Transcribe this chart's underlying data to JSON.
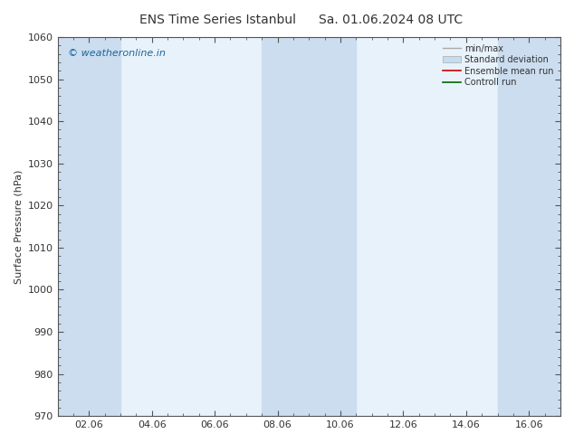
{
  "title": "ENS Time Series Istanbul",
  "title2": "Sa. 01.06.2024 08 UTC",
  "ylabel": "Surface Pressure (hPa)",
  "ylim": [
    970,
    1060
  ],
  "yticks": [
    970,
    980,
    990,
    1000,
    1010,
    1020,
    1030,
    1040,
    1050,
    1060
  ],
  "xtick_labels": [
    "02.06",
    "04.06",
    "06.06",
    "08.06",
    "10.06",
    "12.06",
    "14.06",
    "16.06"
  ],
  "xtick_positions": [
    2,
    4,
    6,
    8,
    10,
    12,
    14,
    16
  ],
  "xlim": [
    1,
    17
  ],
  "shaded_bands": [
    {
      "x_start": 1.0,
      "x_end": 3.0
    },
    {
      "x_start": 7.5,
      "x_end": 10.5
    },
    {
      "x_start": 15.0,
      "x_end": 17.0
    }
  ],
  "bg_plot_color": "#e8f2fb",
  "shade_color": "#ccddf0",
  "watermark": "© weatheronline.in",
  "watermark_color": "#1a6699",
  "bg_color": "#ffffff",
  "legend_items": [
    {
      "label": "min/max",
      "color": "#aaaaaa",
      "type": "line"
    },
    {
      "label": "Standard deviation",
      "color": "#c5ddf0",
      "type": "fill"
    },
    {
      "label": "Ensemble mean run",
      "color": "#cc0000",
      "type": "line"
    },
    {
      "label": "Controll run",
      "color": "#006600",
      "type": "line"
    }
  ],
  "axis_color": "#555555",
  "tick_color": "#555555",
  "font_color": "#333333",
  "title_fontsize": 10,
  "label_fontsize": 8,
  "tick_fontsize": 8,
  "legend_fontsize": 7
}
